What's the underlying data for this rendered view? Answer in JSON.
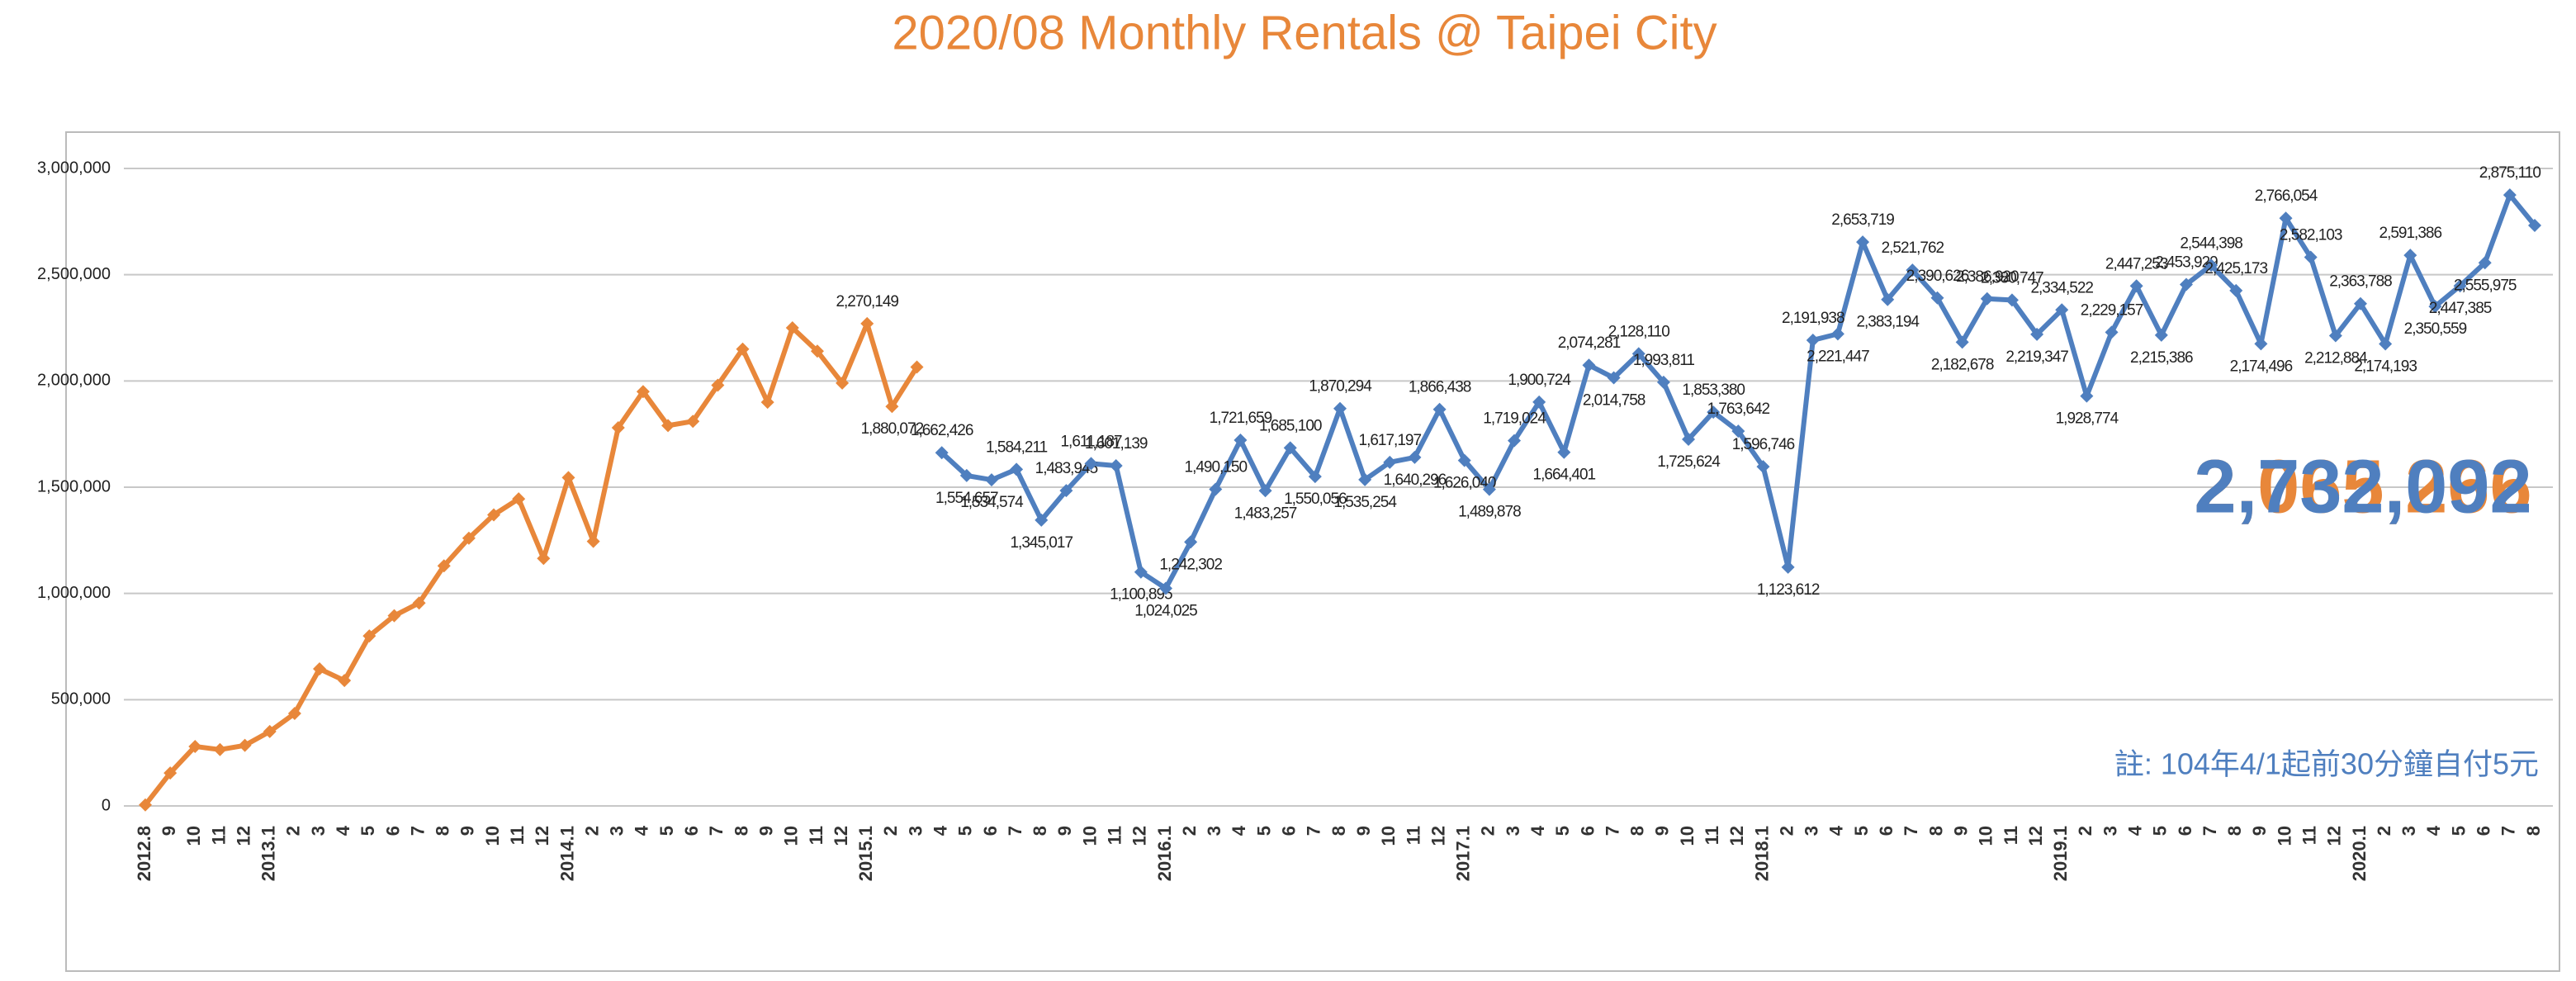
{
  "chart_data": {
    "type": "line",
    "title": "2020/08 Monthly Rentals @ Taipei City",
    "annotation": "註: 104年4/1起前30分鐘自付5元",
    "categories": [
      "2012.8",
      "9",
      "10",
      "11",
      "12",
      "2013.1",
      "2",
      "3",
      "4",
      "5",
      "6",
      "7",
      "8",
      "9",
      "10",
      "11",
      "12",
      "2014.1",
      "2",
      "3",
      "4",
      "5",
      "6",
      "7",
      "8",
      "9",
      "10",
      "11",
      "12",
      "2015.1",
      "2",
      "3",
      "4",
      "5",
      "6",
      "7",
      "8",
      "9",
      "10",
      "11",
      "12",
      "2016.1",
      "2",
      "3",
      "4",
      "5",
      "6",
      "7",
      "8",
      "9",
      "10",
      "11",
      "12",
      "2017.1",
      "2",
      "3",
      "4",
      "5",
      "6",
      "7",
      "8",
      "9",
      "10",
      "11",
      "12",
      "2018.1",
      "2",
      "3",
      "4",
      "5",
      "6",
      "7",
      "8",
      "9",
      "10",
      "11",
      "12",
      "2019.1",
      "2",
      "3",
      "4",
      "5",
      "6",
      "7",
      "8",
      "9",
      "10",
      "11",
      "12",
      "2020.1",
      "2",
      "3",
      "4",
      "5",
      "6",
      "7",
      "8"
    ],
    "series": [
      {
        "color": "#e8873a",
        "values": [
          5000,
          155000,
          280000,
          265000,
          285000,
          350000,
          435000,
          645000,
          590000,
          800000,
          895000,
          955000,
          1130000,
          1260000,
          1370000,
          1445000,
          1165000,
          1545000,
          1245000,
          1780000,
          1950000,
          1790000,
          1810000,
          1980000,
          2150000,
          1900000,
          2250000,
          2140000,
          1990000,
          2270149,
          1880072,
          2065266,
          null,
          null,
          null,
          null,
          null,
          null,
          null,
          null,
          null,
          null,
          null,
          null,
          null,
          null,
          null,
          null,
          null,
          null,
          null,
          null,
          null,
          null,
          null,
          null,
          null,
          null,
          null,
          null,
          null,
          null,
          null,
          null,
          null,
          null,
          null,
          null,
          null,
          null,
          null,
          null,
          null,
          null,
          null,
          null,
          null,
          null,
          null,
          null,
          null,
          null,
          null,
          null,
          null,
          null,
          null,
          null,
          null,
          null,
          null,
          null,
          null,
          null,
          null,
          null,
          null
        ],
        "value_labels": [
          null,
          null,
          null,
          null,
          null,
          null,
          null,
          null,
          null,
          null,
          null,
          null,
          null,
          null,
          null,
          null,
          null,
          null,
          null,
          null,
          null,
          null,
          null,
          null,
          null,
          null,
          null,
          null,
          null,
          "2,270,149",
          "1,880,072",
          "2,065,266",
          null,
          null,
          null,
          null,
          null,
          null,
          null,
          null,
          null,
          null,
          null,
          null,
          null,
          null,
          null,
          null,
          null,
          null,
          null,
          null,
          null,
          null,
          null,
          null,
          null,
          null,
          null,
          null,
          null,
          null,
          null,
          null,
          null,
          null,
          null,
          null,
          null,
          null,
          null,
          null,
          null,
          null,
          null,
          null,
          null,
          null,
          null,
          null,
          null,
          null,
          null,
          null,
          null,
          null,
          null,
          null,
          null,
          null,
          null,
          null,
          null,
          null,
          null,
          null,
          null
        ]
      },
      {
        "color": "#4f7fbf",
        "values": [
          null,
          null,
          null,
          null,
          null,
          null,
          null,
          null,
          null,
          null,
          null,
          null,
          null,
          null,
          null,
          null,
          null,
          null,
          null,
          null,
          null,
          null,
          null,
          null,
          null,
          null,
          null,
          null,
          null,
          null,
          null,
          null,
          1662426,
          1554657,
          1534574,
          1584211,
          1345017,
          1483945,
          1611187,
          1601139,
          1100895,
          1024025,
          1242302,
          1490150,
          1721659,
          1483257,
          1685100,
          1550056,
          1870294,
          1535254,
          1617197,
          1640296,
          1866438,
          1626040,
          1489878,
          1719024,
          1900724,
          1664401,
          2074281,
          2014758,
          2128110,
          1993811,
          1725624,
          1853380,
          1763642,
          1596746,
          1123612,
          2191938,
          2221447,
          2653719,
          2383194,
          2521762,
          2390626,
          2182678,
          2386920,
          2380747,
          2219347,
          2334522,
          1928774,
          2229157,
          2447253,
          2215386,
          2453929,
          2544398,
          2425173,
          2174496,
          2766054,
          2582103,
          2212884,
          2363788,
          2174193,
          2591386,
          2350559,
          2447385,
          2555975,
          2875110,
          2732092
        ],
        "value_labels": [
          null,
          null,
          null,
          null,
          null,
          null,
          null,
          null,
          null,
          null,
          null,
          null,
          null,
          null,
          null,
          null,
          null,
          null,
          null,
          null,
          null,
          null,
          null,
          null,
          null,
          null,
          null,
          null,
          null,
          null,
          null,
          null,
          "1,662,426",
          "1,554,657",
          "1,534,574",
          "1,584,211",
          "1,345,017",
          "1,483,945",
          "1,611,187",
          "1,601,139",
          "1,100,895",
          "1,024,025",
          "1,242,302",
          "1,490,150",
          "1,721,659",
          "1,483,257",
          "1,685,100",
          "1,550,056",
          "1,870,294",
          "1,535,254",
          "1,617,197",
          "1,640,296",
          "1,866,438",
          "1,626,040",
          "1,489,878",
          "1,719,024",
          "1,900,724",
          "1,664,401",
          "2,074,281",
          "2,014,758",
          "2,128,110",
          "1,993,811",
          "1,725,624",
          "1,853,380",
          "1,763,642",
          "1,596,746",
          "1,123,612",
          "2,191,938",
          "2,221,447",
          "2,653,719",
          "2,383,194",
          "2,521,762",
          "2,390,626",
          "2,182,678",
          "2,386,920",
          "2,380,747",
          "2,219,347",
          "2,334,522",
          "1,928,774",
          "2,229,157",
          "2,447,253",
          "2,215,386",
          "2,453,929",
          "2,544,398",
          "2,425,173",
          "2,174,496",
          "2,766,054",
          "2,582,103",
          "2,212,884",
          "2,363,788",
          "2,174,193",
          "2,591,386",
          "2,350,559",
          "2,447,385",
          "2,555,975",
          "2,875,110",
          "2,732,092"
        ]
      }
    ],
    "ylim": [
      0,
      3000000
    ],
    "yticks": [
      0,
      {
        "value": 500000,
        "label": "500,000"
      },
      {
        "value": 1000000,
        "label": "1,000,000"
      },
      {
        "value": 1500000,
        "label": "1,500,000"
      },
      {
        "value": 2000000,
        "label": "2,000,000"
      },
      {
        "value": 2500000,
        "label": "2,500,000"
      },
      {
        "value": 3000000,
        "label": "3,000,000"
      }
    ],
    "grid": true
  }
}
